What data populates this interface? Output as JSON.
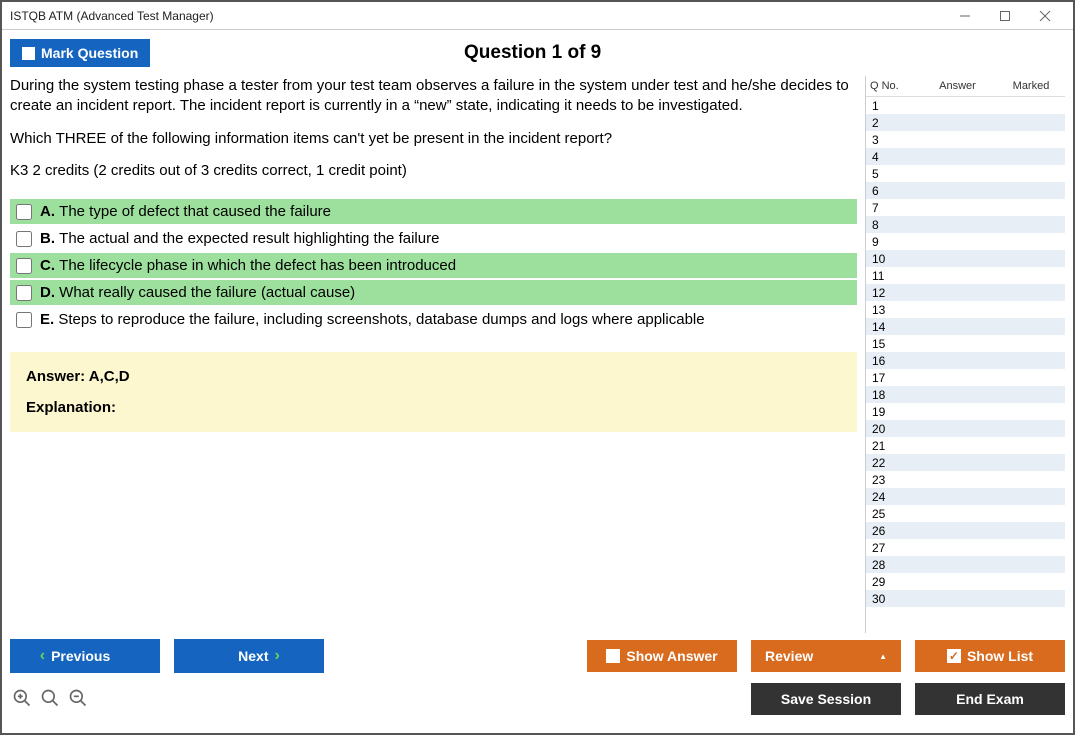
{
  "window": {
    "title": "ISTQB ATM (Advanced Test Manager)"
  },
  "header": {
    "mark_label": "Mark Question",
    "question_title": "Question 1 of 9"
  },
  "question": {
    "paragraphs": [
      "During the system testing phase a tester from your test team observes a failure in the system under test and he/she decides to create an incident report. The incident report is currently in a “new” state, indicating it needs to be investigated.",
      "Which THREE of the following information items can't yet be present in the incident report?",
      "K3 2 credits (2 credits out of 3 credits correct, 1 credit point)"
    ],
    "options": [
      {
        "letter": "A.",
        "text": "The type of defect that caused the failure",
        "correct": true
      },
      {
        "letter": "B.",
        "text": "The actual and the expected result highlighting the failure",
        "correct": false
      },
      {
        "letter": "C.",
        "text": "The lifecycle phase in which the defect has been introduced",
        "correct": true
      },
      {
        "letter": "D.",
        "text": "What really caused the failure (actual cause)",
        "correct": true
      },
      {
        "letter": "E.",
        "text": "Steps to reproduce the failure, including screenshots, database dumps and logs where applicable",
        "correct": false
      }
    ],
    "answer_label": "Answer: ",
    "answer_value": "A,C,D",
    "explanation_label": "Explanation:"
  },
  "sidebar": {
    "headers": {
      "qno": "Q No.",
      "answer": "Answer",
      "marked": "Marked"
    },
    "row_count": 30
  },
  "footer": {
    "previous": "Previous",
    "next": "Next",
    "show_answer": "Show Answer",
    "review": "Review",
    "show_list": "Show List",
    "save_session": "Save Session",
    "end_exam": "End Exam"
  },
  "colors": {
    "blue": "#1565c0",
    "orange": "#d96b1f",
    "dark": "#333333",
    "correct_bg": "#9de09d",
    "answer_bg": "#fdf7cf",
    "alt_row": "#e8eef5"
  }
}
